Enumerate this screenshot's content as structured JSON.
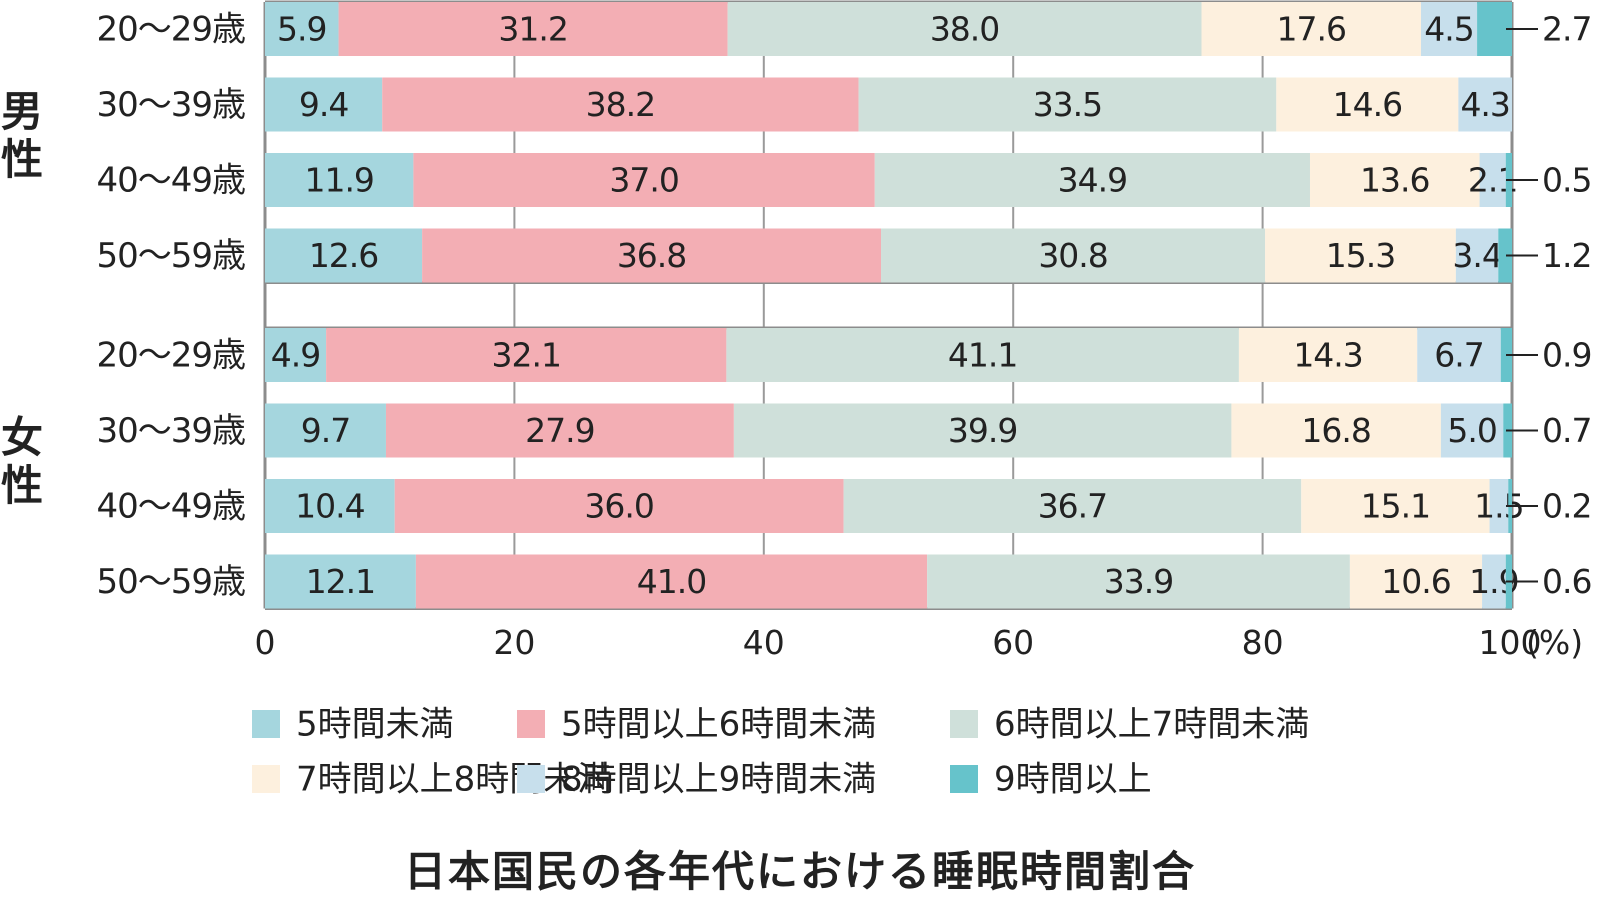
{
  "chart_data": {
    "type": "bar",
    "orientation": "horizontal",
    "stacked": true,
    "title": "日本国民の各年代における睡眠時間割合",
    "x_unit": "(%)",
    "xlim": [
      0,
      100
    ],
    "x_ticks": [
      "0",
      "20",
      "40",
      "60",
      "80",
      "100"
    ],
    "grid": true,
    "legend_position": "bottom",
    "groups": [
      {
        "label": "男性",
        "rows": [
          {
            "label": "20〜29歳",
            "values": [
              5.9,
              31.2,
              38.0,
              17.6,
              4.5,
              2.7
            ]
          },
          {
            "label": "30〜39歳",
            "values": [
              9.4,
              38.2,
              33.5,
              14.6,
              4.3,
              null
            ]
          },
          {
            "label": "40〜49歳",
            "values": [
              11.9,
              37.0,
              34.9,
              13.6,
              2.1,
              0.5
            ]
          },
          {
            "label": "50〜59歳",
            "values": [
              12.6,
              36.8,
              30.8,
              15.3,
              3.4,
              1.2
            ]
          }
        ]
      },
      {
        "label": "女性",
        "rows": [
          {
            "label": "20〜29歳",
            "values": [
              4.9,
              32.1,
              41.1,
              14.3,
              6.7,
              0.9
            ]
          },
          {
            "label": "30〜39歳",
            "values": [
              9.7,
              27.9,
              39.9,
              16.8,
              5.0,
              0.7
            ]
          },
          {
            "label": "40〜49歳",
            "values": [
              10.4,
              36.0,
              36.7,
              15.1,
              1.5,
              0.2
            ]
          },
          {
            "label": "50〜59歳",
            "values": [
              12.1,
              41.0,
              33.9,
              10.6,
              1.9,
              0.6
            ]
          }
        ]
      }
    ],
    "series": [
      {
        "name": "5時間未満",
        "color": "#a5d6de"
      },
      {
        "name": "5時間以上6時間未満",
        "color": "#f3aeb4"
      },
      {
        "name": "6時間以上7時間未満",
        "color": "#cfe0da"
      },
      {
        "name": "7時間以上8時間未満",
        "color": "#fdf0de"
      },
      {
        "name": "8時間以上9時間未満",
        "color": "#c7dfec"
      },
      {
        "name": "9時間以上",
        "color": "#66c3cb"
      }
    ]
  }
}
